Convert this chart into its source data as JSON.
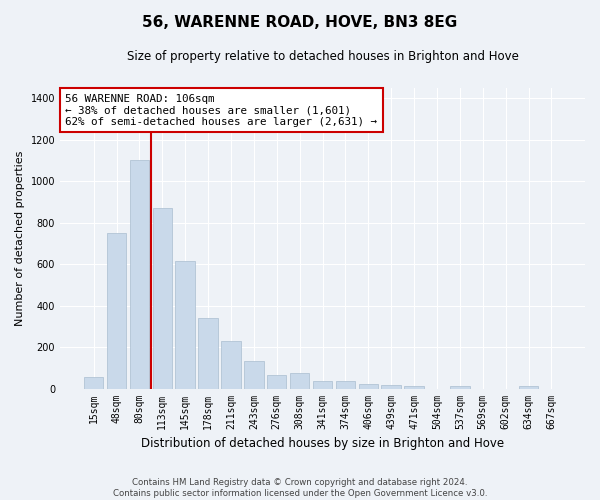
{
  "title": "56, WARENNE ROAD, HOVE, BN3 8EG",
  "subtitle": "Size of property relative to detached houses in Brighton and Hove",
  "xlabel": "Distribution of detached houses by size in Brighton and Hove",
  "ylabel": "Number of detached properties",
  "categories": [
    "15sqm",
    "48sqm",
    "80sqm",
    "113sqm",
    "145sqm",
    "178sqm",
    "211sqm",
    "243sqm",
    "276sqm",
    "308sqm",
    "341sqm",
    "374sqm",
    "406sqm",
    "439sqm",
    "471sqm",
    "504sqm",
    "537sqm",
    "569sqm",
    "602sqm",
    "634sqm",
    "667sqm"
  ],
  "values": [
    55,
    750,
    1100,
    870,
    615,
    340,
    228,
    135,
    65,
    75,
    35,
    35,
    22,
    15,
    12,
    0,
    10,
    0,
    0,
    10,
    0
  ],
  "bar_color": "#c9d9ea",
  "bar_edge_color": "#aabdd0",
  "background_color": "#eef2f7",
  "grid_color": "#ffffff",
  "vline_color": "#cc0000",
  "vline_pos": 2.5,
  "annotation_text": "56 WARENNE ROAD: 106sqm\n← 38% of detached houses are smaller (1,601)\n62% of semi-detached houses are larger (2,631) →",
  "annotation_box_facecolor": "#ffffff",
  "annotation_box_edgecolor": "#cc0000",
  "ylim": [
    0,
    1450
  ],
  "yticks": [
    0,
    200,
    400,
    600,
    800,
    1000,
    1200,
    1400
  ],
  "title_fontsize": 11,
  "subtitle_fontsize": 8.5,
  "ylabel_fontsize": 8,
  "xlabel_fontsize": 8.5,
  "tick_fontsize": 7,
  "footer1": "Contains HM Land Registry data © Crown copyright and database right 2024.",
  "footer2": "Contains public sector information licensed under the Open Government Licence v3.0."
}
